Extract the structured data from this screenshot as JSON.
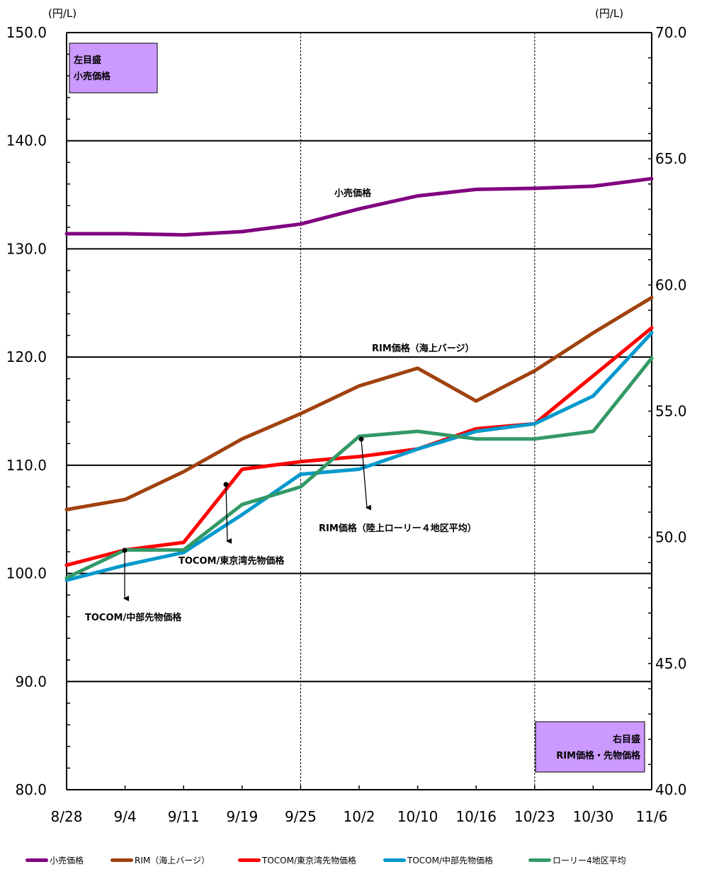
{
  "chart_data": {
    "type": "line",
    "y_unit_left": "(円/L)",
    "y_unit_right": "(円/L)",
    "categories": [
      "8/28",
      "9/4",
      "9/11",
      "9/19",
      "9/25",
      "10/2",
      "10/10",
      "10/16",
      "10/23",
      "10/30",
      "11/6"
    ],
    "y_left": {
      "lim": [
        80,
        150
      ],
      "ticks": [
        "80.0",
        "90.0",
        "100.0",
        "110.0",
        "120.0",
        "130.0",
        "140.0",
        "150.0"
      ]
    },
    "y_right": {
      "lim": [
        40,
        70
      ],
      "ticks": [
        "40.0",
        "45.0",
        "50.0",
        "55.0",
        "60.0",
        "65.0",
        "70.0"
      ]
    },
    "grid": true,
    "series": [
      {
        "name": "小売価格",
        "axis": "left",
        "color": "#800080",
        "values": [
          131.4,
          131.4,
          131.3,
          131.6,
          132.3,
          133.7,
          134.9,
          135.5,
          135.6,
          135.8,
          136.5
        ]
      },
      {
        "name": "RIM（海上バージ）",
        "axis": "right",
        "color": "#a0410d",
        "values": [
          51.1,
          51.5,
          52.6,
          53.9,
          54.9,
          56.0,
          56.7,
          55.4,
          56.6,
          58.1,
          59.5
        ]
      },
      {
        "name": "TOCOM/東京湾先物価格",
        "axis": "right",
        "color": "#ff0000",
        "values": [
          48.9,
          49.5,
          49.8,
          52.7,
          53.0,
          53.2,
          53.5,
          54.3,
          54.5,
          56.4,
          58.3
        ]
      },
      {
        "name": "TOCOM/中部先物価格",
        "axis": "right",
        "color": "#0099cc",
        "values": [
          48.3,
          48.9,
          49.4,
          50.9,
          52.5,
          52.7,
          53.5,
          54.2,
          54.5,
          55.6,
          58.1
        ]
      },
      {
        "name": "ローリー4地区平均",
        "axis": "right",
        "color": "#339966",
        "values": [
          48.4,
          49.5,
          49.5,
          51.3,
          52.0,
          54.0,
          54.2,
          53.9,
          53.9,
          54.2,
          57.1
        ]
      }
    ],
    "annotations": {
      "retail": "小売価格",
      "rim_barge": "RIM価格（海上バージ）",
      "rim_lorry": "RIM価格（陸上ローリー４地区平均）",
      "tocom_tokyo": "TOCOM/東京湾先物価格",
      "tocom_chubu": "TOCOM/中部先物価格"
    },
    "left_box": {
      "line1": "左目盛",
      "line2": "小売価格",
      "color": "#cc99ff"
    },
    "right_box": {
      "line1": "右目盛",
      "line2": "RIM価格・先物価格",
      "color": "#cc99ff"
    },
    "legend_position": "bottom"
  }
}
